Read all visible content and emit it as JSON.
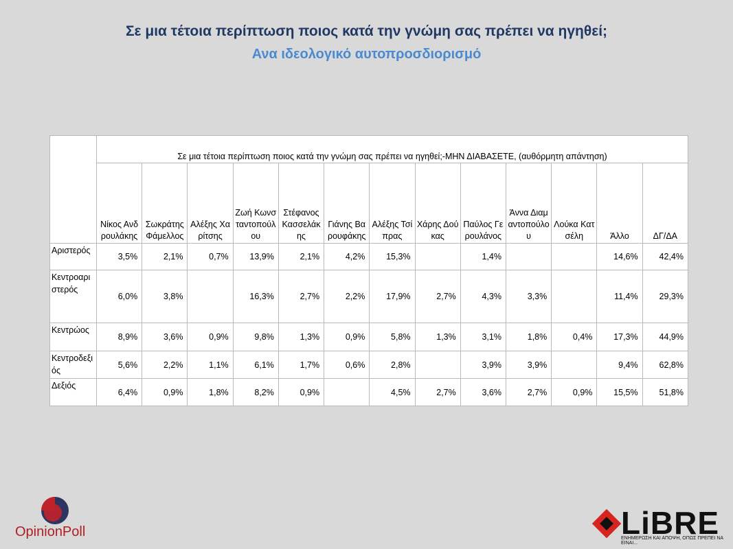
{
  "header": {
    "title": "Σε μια τέτοια περίπτωση ποιος κατά την γνώμη σας πρέπει να ηγηθεί;",
    "subtitle": "Ανα ιδεολογικό αυτοπροσδιορισμό"
  },
  "table": {
    "caption": "Σε μια τέτοια περίπτωση ποιος κατά την γνώμη σας πρέπει να ηγηθεί;-ΜΗΝ ΔΙΑΒΑΣΕΤΕ, (αυθόρμητη απάντηση)",
    "columns": [
      "Νίκος Ανδρουλάκης",
      "Σωκράτης Φάμελλος",
      "Αλέξης Χαρίτσης",
      "Ζωή Κωνσταντοπούλου",
      "Στέφανος Κασσελάκης",
      "Γιάνης Βαρουφάκης",
      "Αλέξης Τσίπρας",
      "Χάρης Δούκας",
      "Παύλος Γερουλάνος",
      "Άννα Διαμαντοπούλου",
      "Λούκα Κατσέλη",
      "Άλλο",
      "ΔΓ/ΔΑ"
    ],
    "rows": [
      {
        "label": "Αριστερός",
        "cells": [
          "3,5%",
          "2,1%",
          "0,7%",
          "13,9%",
          "2,1%",
          "4,2%",
          "15,3%",
          null,
          "1,4%",
          null,
          null,
          "14,6%",
          "42,4%"
        ]
      },
      {
        "label": "Κεντροαριστερός",
        "cells": [
          "6,0%",
          "3,8%",
          null,
          "16,3%",
          "2,7%",
          "2,2%",
          "17,9%",
          "2,7%",
          "4,3%",
          "3,3%",
          null,
          "11,4%",
          "29,3%"
        ]
      },
      {
        "label": "Κεντρώος",
        "cells": [
          "8,9%",
          "3,6%",
          "0,9%",
          "9,8%",
          "1,3%",
          "0,9%",
          "5,8%",
          "1,3%",
          "3,1%",
          "1,8%",
          "0,4%",
          "17,3%",
          "44,9%"
        ]
      },
      {
        "label": "Κεντροδεξιός",
        "cells": [
          "5,6%",
          "2,2%",
          "1,1%",
          "6,1%",
          "1,7%",
          "0,6%",
          "2,8%",
          null,
          "3,9%",
          "3,9%",
          null,
          "9,4%",
          "62,8%"
        ]
      },
      {
        "label": "Δεξιός",
        "cells": [
          "6,4%",
          "0,9%",
          "1,8%",
          "8,2%",
          "0,9%",
          null,
          "4,5%",
          "2,7%",
          "3,6%",
          "2,7%",
          "0,9%",
          "15,5%",
          "51,8%"
        ]
      }
    ]
  },
  "logos": {
    "left": "OpinionPoll",
    "right": "LiBRE",
    "right_tagline": "ΕΝΗΜΕΡΩΣΗ ΚΑΙ ΑΠΟΨΗ, ΟΠΩΣ ΠΡΕΠΕΙ ΝΑ ΕΙΝΑΙ..."
  }
}
